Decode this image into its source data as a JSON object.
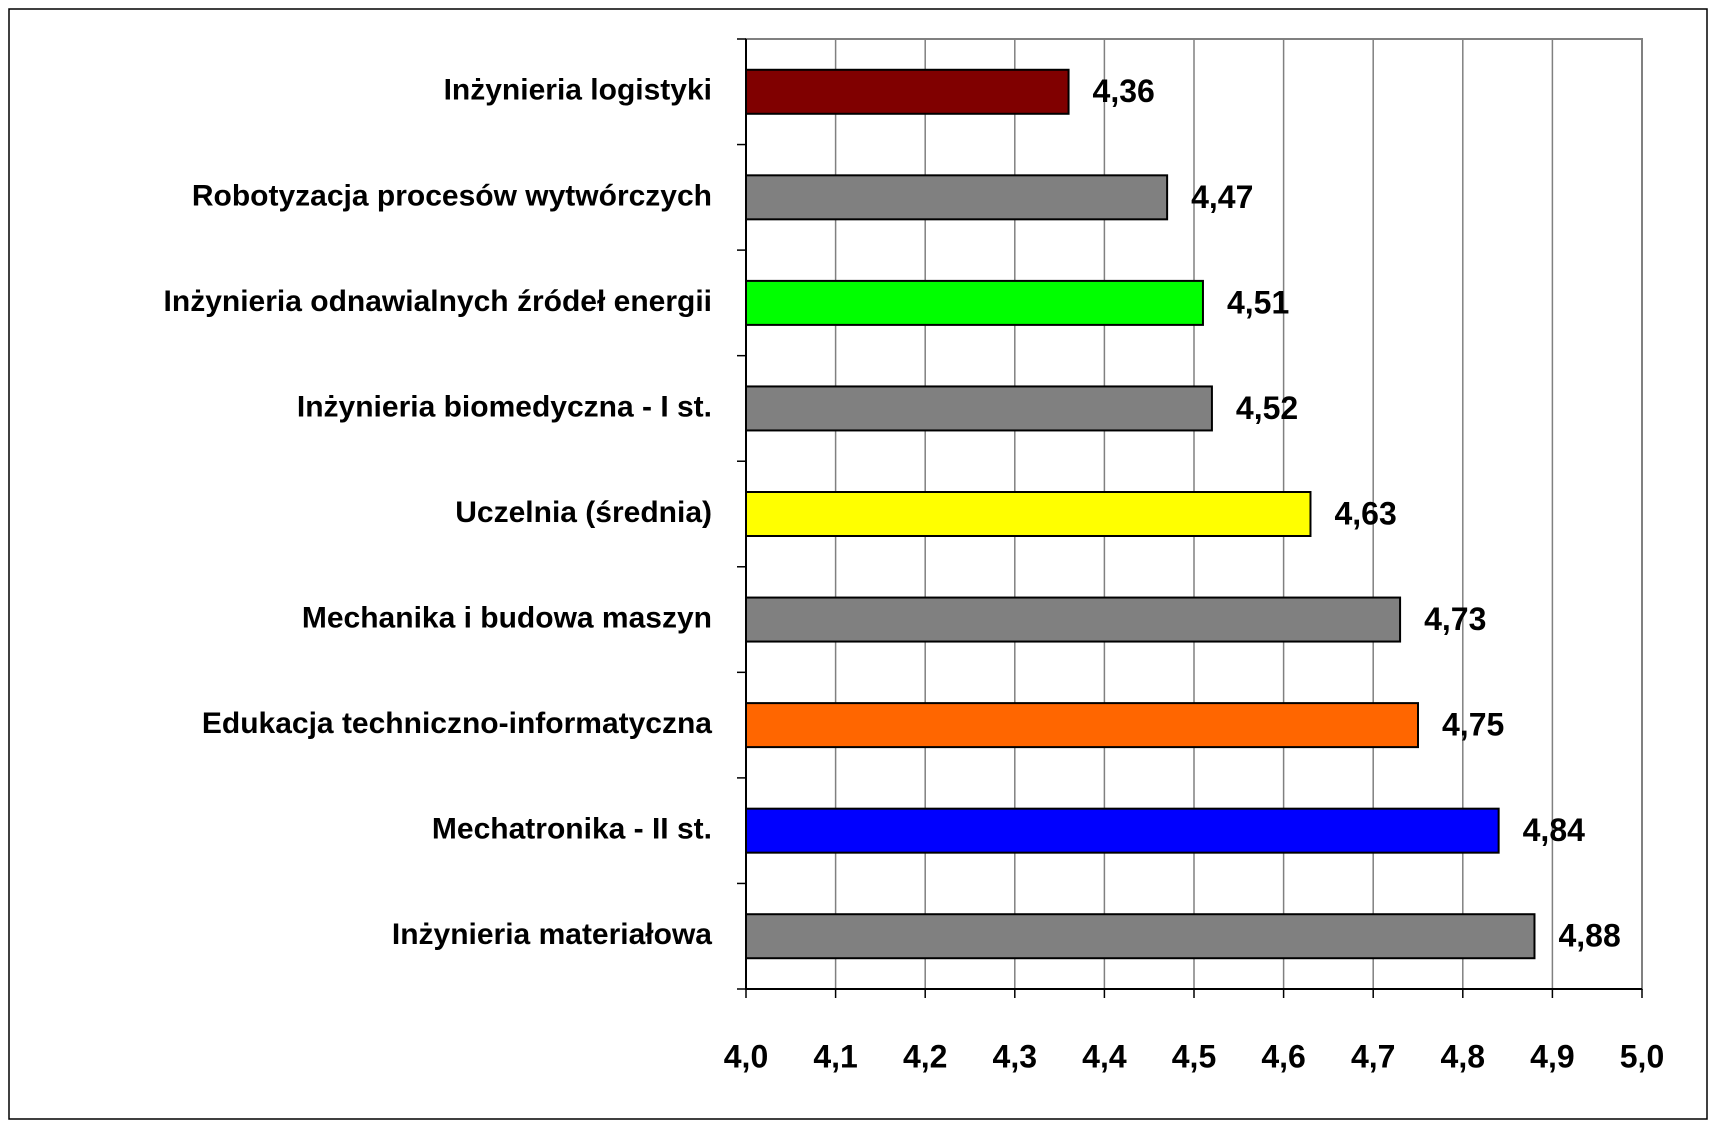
{
  "chart_data": {
    "type": "bar",
    "orientation": "horizontal",
    "categories": [
      "Inżynieria logistyki",
      "Robotyzacja procesów wytwórczych",
      "Inżynieria odnawialnych źródeł energii",
      "Inżynieria biomedyczna - I st.",
      "Uczelnia (średnia)",
      "Mechanika i budowa maszyn",
      "Edukacja techniczno-informatyczna",
      "Mechatronika - II st.",
      "Inżynieria materiałowa"
    ],
    "values": [
      4.36,
      4.47,
      4.51,
      4.52,
      4.63,
      4.73,
      4.75,
      4.84,
      4.88
    ],
    "value_labels": [
      "4,36",
      "4,47",
      "4,51",
      "4,52",
      "4,63",
      "4,73",
      "4,75",
      "4,84",
      "4,88"
    ],
    "colors": [
      "#800000",
      "#808080",
      "#00ff00",
      "#808080",
      "#ffff00",
      "#808080",
      "#ff6600",
      "#0000ff",
      "#808080"
    ],
    "xlim": [
      4.0,
      5.0
    ],
    "xticks": [
      {
        "value": 4.0,
        "label": "4,0"
      },
      {
        "value": 4.1,
        "label": "4,1"
      },
      {
        "value": 4.2,
        "label": "4,2"
      },
      {
        "value": 4.3,
        "label": "4,3"
      },
      {
        "value": 4.4,
        "label": "4,4"
      },
      {
        "value": 4.5,
        "label": "4,5"
      },
      {
        "value": 4.6,
        "label": "4,6"
      },
      {
        "value": 4.7,
        "label": "4,7"
      },
      {
        "value": 4.8,
        "label": "4,8"
      },
      {
        "value": 4.9,
        "label": "4,9"
      },
      {
        "value": 5.0,
        "label": "5,0"
      }
    ],
    "grid": true
  }
}
